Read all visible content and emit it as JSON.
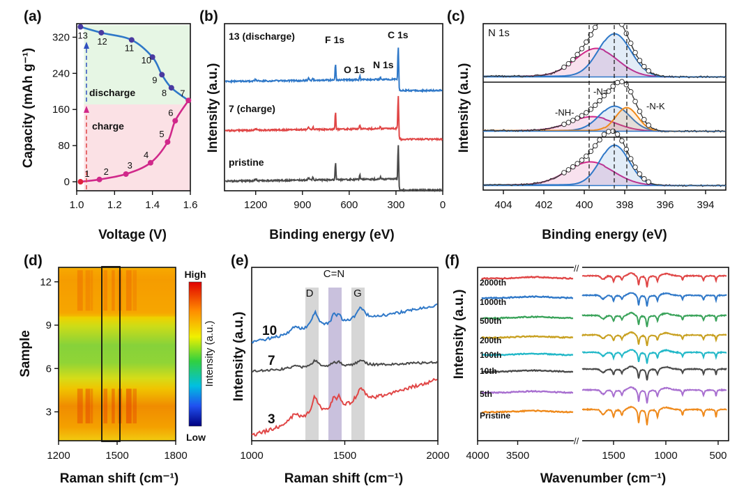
{
  "figure": {
    "panel_labels": [
      "(a)",
      "(b)",
      "(c)",
      "(d)",
      "(e)",
      "(f)"
    ]
  },
  "colors": {
    "blue": "#2f78c8",
    "red": "#e04646",
    "gray": "#4a4a4a",
    "magenta": "#d0288a",
    "orange": "#ef8a1c",
    "green_bg": "#e6f6e4",
    "pink_bg": "#fbe1e5"
  },
  "chart_data": [
    {
      "panel": "(a)",
      "type": "line",
      "xlabel": "Voltage (V)",
      "ylabel": "Capacity (mAh g⁻¹)",
      "xlim": [
        1.0,
        1.6
      ],
      "ylim": [
        -20,
        350
      ],
      "xticks": [
        "1.0",
        "1.2",
        "1.4",
        "1.6"
      ],
      "yticks": [
        "0",
        "80",
        "160",
        "240",
        "320"
      ],
      "series": [
        {
          "name": "charge",
          "labels": [
            "1",
            "2",
            "3",
            "4",
            "5",
            "6",
            "7"
          ],
          "x": [
            1.02,
            1.12,
            1.26,
            1.39,
            1.48,
            1.52,
            1.59
          ],
          "y": [
            0,
            5,
            17,
            42,
            88,
            135,
            180
          ]
        },
        {
          "name": "discharge",
          "labels": [
            "8",
            "9",
            "10",
            "11",
            "12",
            "13"
          ],
          "x": [
            1.5,
            1.45,
            1.4,
            1.29,
            1.13,
            1.02
          ],
          "y": [
            208,
            237,
            276,
            314,
            330,
            343
          ]
        }
      ],
      "annotations": {
        "charge": "charge",
        "discharge": "discharge"
      }
    },
    {
      "panel": "(b)",
      "type": "line",
      "xlabel": "Binding energy (eV)",
      "ylabel": "Intensity (a.u.)",
      "xlim": [
        1400,
        0
      ],
      "xticks": [
        "1200",
        "900",
        "600",
        "300",
        "0"
      ],
      "series": [
        {
          "name": "13 (discharge)"
        },
        {
          "name": "7 (charge)"
        },
        {
          "name": "pristine"
        }
      ],
      "peaks": [
        "F 1s",
        "O 1s",
        "N 1s",
        "C 1s"
      ]
    },
    {
      "panel": "(c)",
      "type": "line",
      "title": "N 1s",
      "xlabel": "Binding energy (eV)",
      "ylabel": "Intensity (a.u.)",
      "xlim": [
        405,
        393
      ],
      "xticks": [
        "404",
        "402",
        "400",
        "398",
        "396",
        "394"
      ],
      "components": [
        "-NH-",
        "-N=",
        "-N-K"
      ]
    },
    {
      "panel": "(d)",
      "type": "heatmap",
      "xlabel": "Raman shift (cm⁻¹)",
      "ylabel": "Sample",
      "xlim": [
        1200,
        1800
      ],
      "ylim": [
        1,
        13
      ],
      "xticks": [
        "1200",
        "1500",
        "1800"
      ],
      "yticks": [
        "3",
        "6",
        "9",
        "12"
      ],
      "colorbar": {
        "title": "Intensity (a.u.)",
        "high": "High",
        "low": "Low"
      }
    },
    {
      "panel": "(e)",
      "type": "line",
      "xlabel": "Raman shift (cm⁻¹)",
      "ylabel": "Intensity (a.u.)",
      "xlim": [
        1000,
        2000
      ],
      "xticks": [
        "1000",
        "1500",
        "2000"
      ],
      "series": [
        {
          "name": "10"
        },
        {
          "name": "7"
        },
        {
          "name": "3"
        }
      ],
      "bands": [
        "D",
        "C=N",
        "G"
      ]
    },
    {
      "panel": "(f)",
      "type": "line",
      "xlabel": "Wavenumber (cm⁻¹)",
      "ylabel": "Intensity (a.u.)",
      "xticks": [
        "4000",
        "3500",
        "1500",
        "1000",
        "500"
      ],
      "series": [
        {
          "name": "2000th"
        },
        {
          "name": "1000th"
        },
        {
          "name": "500th"
        },
        {
          "name": "200th"
        },
        {
          "name": "100th"
        },
        {
          "name": "10th"
        },
        {
          "name": "5th"
        },
        {
          "name": "Pristine"
        }
      ]
    }
  ]
}
